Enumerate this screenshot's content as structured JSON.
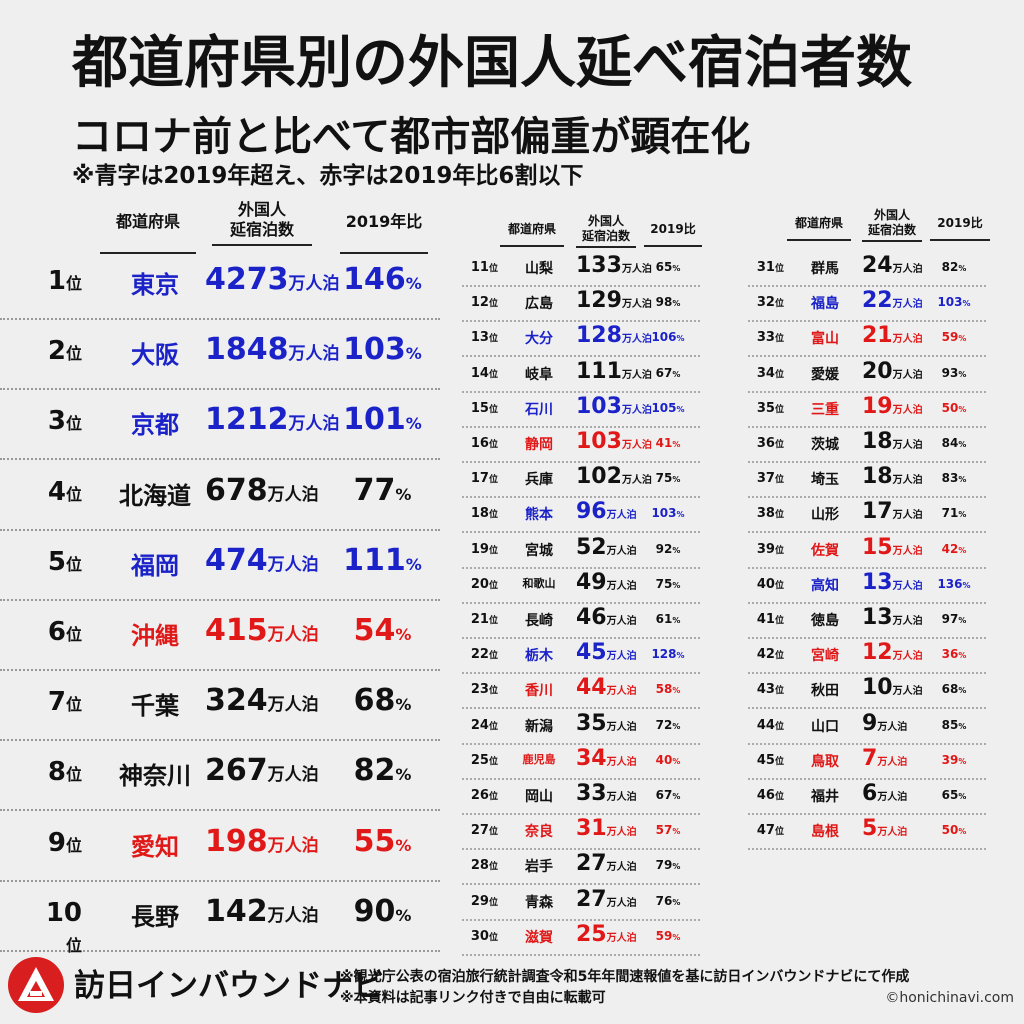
{
  "title": "都道府県別の外国人延べ宿泊者数",
  "subtitle": "コロナ前と比べて都市部偏重が顕在化",
  "note": "※青字は2019年超え、赤字は2019年比6割以下",
  "headers": {
    "main": {
      "pref": "都道府県",
      "stays_l1": "外国人",
      "stays_l2": "延宿泊数",
      "ratio": "2019年比"
    },
    "side": {
      "pref": "都道府県",
      "stays_l1": "外国人",
      "stays_l2": "延宿泊数",
      "ratio": "2019比"
    }
  },
  "rank_suffix": "位",
  "value_unit": "万人泊",
  "ratio_unit": "%",
  "colors": {
    "blue": "#1a22c8",
    "red": "#e01818",
    "black": "#111111"
  },
  "rows": [
    {
      "rank": "1",
      "pref": "東京",
      "value": "4273",
      "ratio": "146",
      "color": "blue"
    },
    {
      "rank": "2",
      "pref": "大阪",
      "value": "1848",
      "ratio": "103",
      "color": "blue"
    },
    {
      "rank": "3",
      "pref": "京都",
      "value": "1212",
      "ratio": "101",
      "color": "blue"
    },
    {
      "rank": "4",
      "pref": "北海道",
      "value": "678",
      "ratio": "77",
      "color": "black"
    },
    {
      "rank": "5",
      "pref": "福岡",
      "value": "474",
      "ratio": "111",
      "color": "blue"
    },
    {
      "rank": "6",
      "pref": "沖縄",
      "value": "415",
      "ratio": "54",
      "color": "red"
    },
    {
      "rank": "7",
      "pref": "千葉",
      "value": "324",
      "ratio": "68",
      "color": "black"
    },
    {
      "rank": "8",
      "pref": "神奈川",
      "value": "267",
      "ratio": "82",
      "color": "black"
    },
    {
      "rank": "9",
      "pref": "愛知",
      "value": "198",
      "ratio": "55",
      "color": "red"
    },
    {
      "rank": "10",
      "pref": "長野",
      "value": "142",
      "ratio": "90",
      "color": "black"
    },
    {
      "rank": "11",
      "pref": "山梨",
      "value": "133",
      "ratio": "65",
      "color": "black"
    },
    {
      "rank": "12",
      "pref": "広島",
      "value": "129",
      "ratio": "98",
      "color": "black"
    },
    {
      "rank": "13",
      "pref": "大分",
      "value": "128",
      "ratio": "106",
      "color": "blue"
    },
    {
      "rank": "14",
      "pref": "岐阜",
      "value": "111",
      "ratio": "67",
      "color": "black"
    },
    {
      "rank": "15",
      "pref": "石川",
      "value": "103",
      "ratio": "105",
      "color": "blue"
    },
    {
      "rank": "16",
      "pref": "静岡",
      "value": "103",
      "ratio": "41",
      "color": "red"
    },
    {
      "rank": "17",
      "pref": "兵庫",
      "value": "102",
      "ratio": "75",
      "color": "black"
    },
    {
      "rank": "18",
      "pref": "熊本",
      "value": "96",
      "ratio": "103",
      "color": "blue"
    },
    {
      "rank": "19",
      "pref": "宮城",
      "value": "52",
      "ratio": "92",
      "color": "black"
    },
    {
      "rank": "20",
      "pref": "和歌山",
      "value": "49",
      "ratio": "75",
      "color": "black"
    },
    {
      "rank": "21",
      "pref": "長崎",
      "value": "46",
      "ratio": "61",
      "color": "black"
    },
    {
      "rank": "22",
      "pref": "栃木",
      "value": "45",
      "ratio": "128",
      "color": "blue"
    },
    {
      "rank": "23",
      "pref": "香川",
      "value": "44",
      "ratio": "58",
      "color": "red"
    },
    {
      "rank": "24",
      "pref": "新潟",
      "value": "35",
      "ratio": "72",
      "color": "black"
    },
    {
      "rank": "25",
      "pref": "鹿児島",
      "value": "34",
      "ratio": "40",
      "color": "red"
    },
    {
      "rank": "26",
      "pref": "岡山",
      "value": "33",
      "ratio": "67",
      "color": "black"
    },
    {
      "rank": "27",
      "pref": "奈良",
      "value": "31",
      "ratio": "57",
      "color": "red"
    },
    {
      "rank": "28",
      "pref": "岩手",
      "value": "27",
      "ratio": "79",
      "color": "black"
    },
    {
      "rank": "29",
      "pref": "青森",
      "value": "27",
      "ratio": "76",
      "color": "black"
    },
    {
      "rank": "30",
      "pref": "滋賀",
      "value": "25",
      "ratio": "59",
      "color": "red"
    },
    {
      "rank": "31",
      "pref": "群馬",
      "value": "24",
      "ratio": "82",
      "color": "black"
    },
    {
      "rank": "32",
      "pref": "福島",
      "value": "22",
      "ratio": "103",
      "color": "blue"
    },
    {
      "rank": "33",
      "pref": "富山",
      "value": "21",
      "ratio": "59",
      "color": "red"
    },
    {
      "rank": "34",
      "pref": "愛媛",
      "value": "20",
      "ratio": "93",
      "color": "black"
    },
    {
      "rank": "35",
      "pref": "三重",
      "value": "19",
      "ratio": "50",
      "color": "red"
    },
    {
      "rank": "36",
      "pref": "茨城",
      "value": "18",
      "ratio": "84",
      "color": "black"
    },
    {
      "rank": "37",
      "pref": "埼玉",
      "value": "18",
      "ratio": "83",
      "color": "black"
    },
    {
      "rank": "38",
      "pref": "山形",
      "value": "17",
      "ratio": "71",
      "color": "black"
    },
    {
      "rank": "39",
      "pref": "佐賀",
      "value": "15",
      "ratio": "42",
      "color": "red"
    },
    {
      "rank": "40",
      "pref": "高知",
      "value": "13",
      "ratio": "136",
      "color": "blue"
    },
    {
      "rank": "41",
      "pref": "徳島",
      "value": "13",
      "ratio": "97",
      "color": "black"
    },
    {
      "rank": "42",
      "pref": "宮崎",
      "value": "12",
      "ratio": "36",
      "color": "red"
    },
    {
      "rank": "43",
      "pref": "秋田",
      "value": "10",
      "ratio": "68",
      "color": "black"
    },
    {
      "rank": "44",
      "pref": "山口",
      "value": "9",
      "ratio": "85",
      "color": "black"
    },
    {
      "rank": "45",
      "pref": "鳥取",
      "value": "7",
      "ratio": "39",
      "color": "red"
    },
    {
      "rank": "46",
      "pref": "福井",
      "value": "6",
      "ratio": "65",
      "color": "black"
    },
    {
      "rank": "47",
      "pref": "島根",
      "value": "5",
      "ratio": "50",
      "color": "red"
    }
  ],
  "brand": "訪日インバウンドナビ",
  "footnotes": [
    "※観光庁公表の宿泊旅行統計調査令和5年年間速報値を基に訪日インバウンドナビにて作成",
    "※本資料は記事リンク付きで自由に転載可"
  ],
  "copyright": "©honichinavi.com"
}
